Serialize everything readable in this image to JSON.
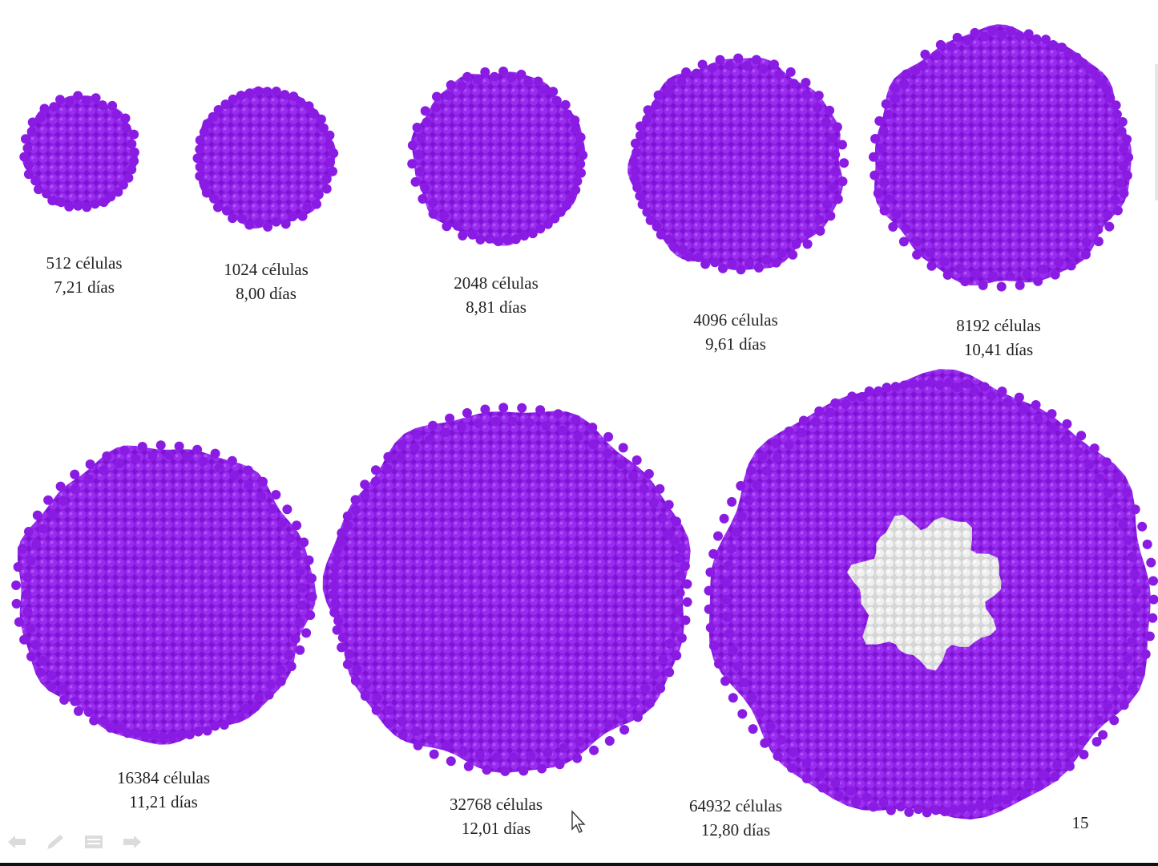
{
  "slide": {
    "slide_number": "15",
    "sphere_color": "#8a1be3",
    "necrotic_color": "#e4e4e4"
  },
  "spheroids": [
    {
      "cells": "512 células",
      "days": "7,21 días",
      "necrotic_core": false
    },
    {
      "cells": "1024 células",
      "days": "8,00 días",
      "necrotic_core": false
    },
    {
      "cells": "2048 células",
      "days": "8,81 días",
      "necrotic_core": false
    },
    {
      "cells": "4096 células",
      "days": "9,61 días",
      "necrotic_core": false
    },
    {
      "cells": "8192 células",
      "days": "10,41 días",
      "necrotic_core": false
    },
    {
      "cells": "16384 células",
      "days": "11,21 días",
      "necrotic_core": false
    },
    {
      "cells": "32768 células",
      "days": "12,01 días",
      "necrotic_core": false
    },
    {
      "cells": "64932 células",
      "days": "12,80 días",
      "necrotic_core": true
    }
  ],
  "nav": {
    "icons": [
      "previous-arrow-icon",
      "pen-icon",
      "menu-icon",
      "next-arrow-icon"
    ]
  }
}
